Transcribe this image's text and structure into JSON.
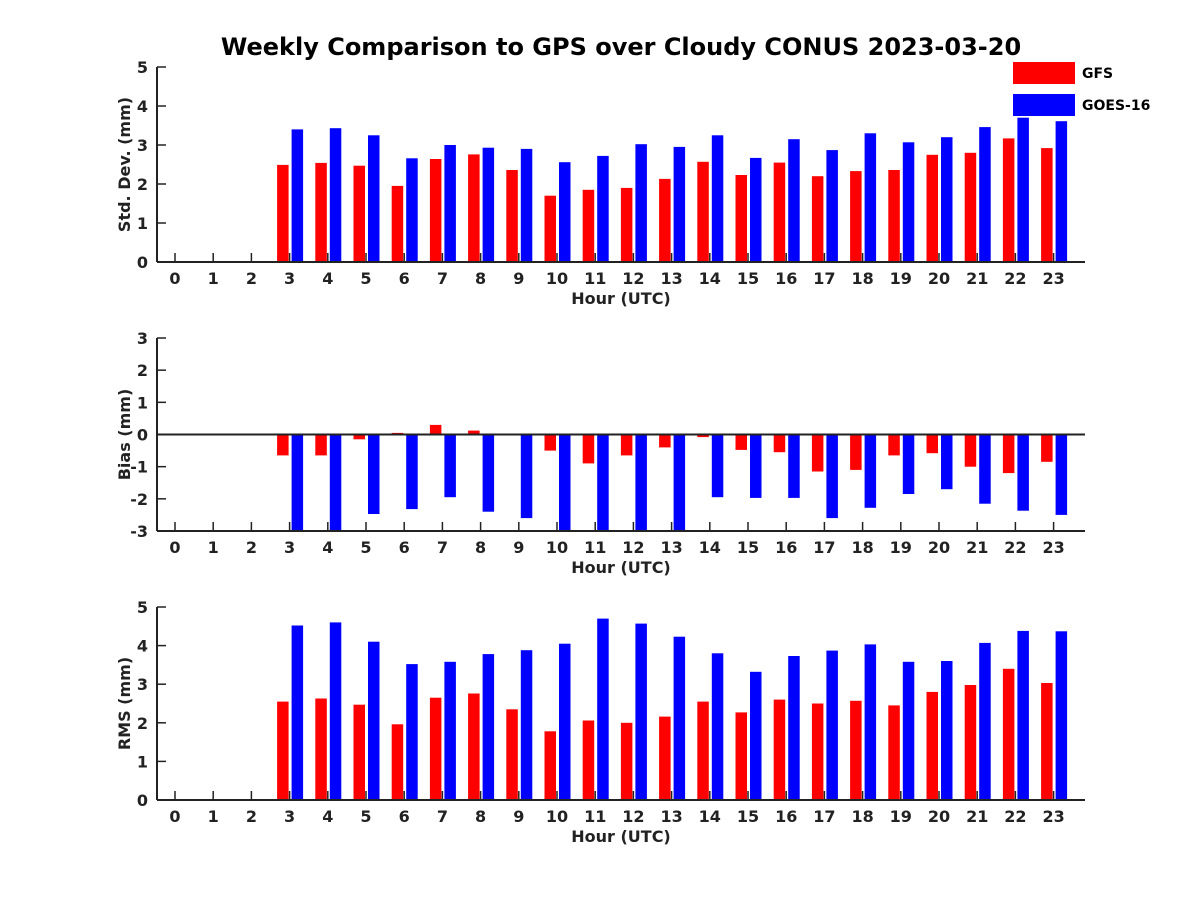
{
  "title": "Weekly Comparison to GPS over Cloudy CONUS 2023-03-20",
  "colors": {
    "GFS": "#ff0000",
    "GOES-16": "#0000ff",
    "axis": "#222222"
  },
  "legend": {
    "placement": "top-right",
    "entries": [
      "GFS",
      "GOES-16"
    ]
  },
  "chart_data": [
    {
      "type": "bar",
      "xlabel": "Hour (UTC)",
      "ylabel": "Std. Dev. (mm)",
      "ylim": [
        0,
        5
      ],
      "yticks": [
        0,
        1,
        2,
        3,
        4,
        5
      ],
      "grid": false,
      "categories": [
        "0",
        "1",
        "2",
        "3",
        "4",
        "5",
        "6",
        "7",
        "8",
        "9",
        "10",
        "11",
        "12",
        "13",
        "14",
        "15",
        "16",
        "17",
        "18",
        "19",
        "20",
        "21",
        "22",
        "23"
      ],
      "series": [
        {
          "name": "GFS",
          "values": [
            null,
            null,
            null,
            2.49,
            2.54,
            2.47,
            1.95,
            2.64,
            2.76,
            2.36,
            1.7,
            1.85,
            1.9,
            2.13,
            2.57,
            2.23,
            2.55,
            2.2,
            2.33,
            2.36,
            2.75,
            2.8,
            3.17,
            2.92
          ]
        },
        {
          "name": "GOES-16",
          "values": [
            null,
            null,
            null,
            3.4,
            3.43,
            3.25,
            2.66,
            3.0,
            2.93,
            2.9,
            2.56,
            2.72,
            3.02,
            2.95,
            3.25,
            2.67,
            3.15,
            2.87,
            3.3,
            3.07,
            3.2,
            3.46,
            3.7,
            3.61
          ]
        }
      ]
    },
    {
      "type": "bar",
      "xlabel": "Hour (UTC)",
      "ylabel": "Bias (mm)",
      "ylim": [
        -3,
        3
      ],
      "yticks": [
        -3,
        -2,
        -1,
        0,
        1,
        2,
        3
      ],
      "grid": false,
      "categories": [
        "0",
        "1",
        "2",
        "3",
        "4",
        "5",
        "6",
        "7",
        "8",
        "9",
        "10",
        "11",
        "12",
        "13",
        "14",
        "15",
        "16",
        "17",
        "18",
        "19",
        "20",
        "21",
        "22",
        "23"
      ],
      "series": [
        {
          "name": "GFS",
          "values": [
            null,
            null,
            null,
            -0.65,
            -0.65,
            -0.15,
            0.05,
            0.3,
            0.12,
            -0.03,
            -0.5,
            -0.9,
            -0.65,
            -0.4,
            -0.08,
            -0.48,
            -0.55,
            -1.15,
            -1.1,
            -0.65,
            -0.58,
            -1.0,
            -1.2,
            -0.85
          ]
        },
        {
          "name": "GOES-16",
          "values": [
            null,
            null,
            null,
            -2.97,
            -3.0,
            -2.47,
            -2.32,
            -1.95,
            -2.4,
            -2.6,
            -3.0,
            -3.0,
            -3.0,
            -3.0,
            -1.95,
            -1.97,
            -1.97,
            -2.6,
            -2.28,
            -1.85,
            -1.7,
            -2.15,
            -2.37,
            -2.5
          ]
        }
      ]
    },
    {
      "type": "bar",
      "xlabel": "Hour (UTC)",
      "ylabel": "RMS (mm)",
      "ylim": [
        0,
        5
      ],
      "yticks": [
        0,
        1,
        2,
        3,
        4,
        5
      ],
      "grid": false,
      "categories": [
        "0",
        "1",
        "2",
        "3",
        "4",
        "5",
        "6",
        "7",
        "8",
        "9",
        "10",
        "11",
        "12",
        "13",
        "14",
        "15",
        "16",
        "17",
        "18",
        "19",
        "20",
        "21",
        "22",
        "23"
      ],
      "series": [
        {
          "name": "GFS",
          "values": [
            null,
            null,
            null,
            2.55,
            2.63,
            2.47,
            1.96,
            2.65,
            2.76,
            2.35,
            1.78,
            2.06,
            2.0,
            2.16,
            2.55,
            2.27,
            2.6,
            2.5,
            2.57,
            2.45,
            2.8,
            2.98,
            3.4,
            3.03
          ]
        },
        {
          "name": "GOES-16",
          "values": [
            null,
            null,
            null,
            4.52,
            4.6,
            4.1,
            3.52,
            3.58,
            3.78,
            3.88,
            4.05,
            4.7,
            4.57,
            4.23,
            3.8,
            3.32,
            3.73,
            3.87,
            4.03,
            3.58,
            3.6,
            4.07,
            4.38,
            4.37
          ]
        }
      ]
    }
  ]
}
